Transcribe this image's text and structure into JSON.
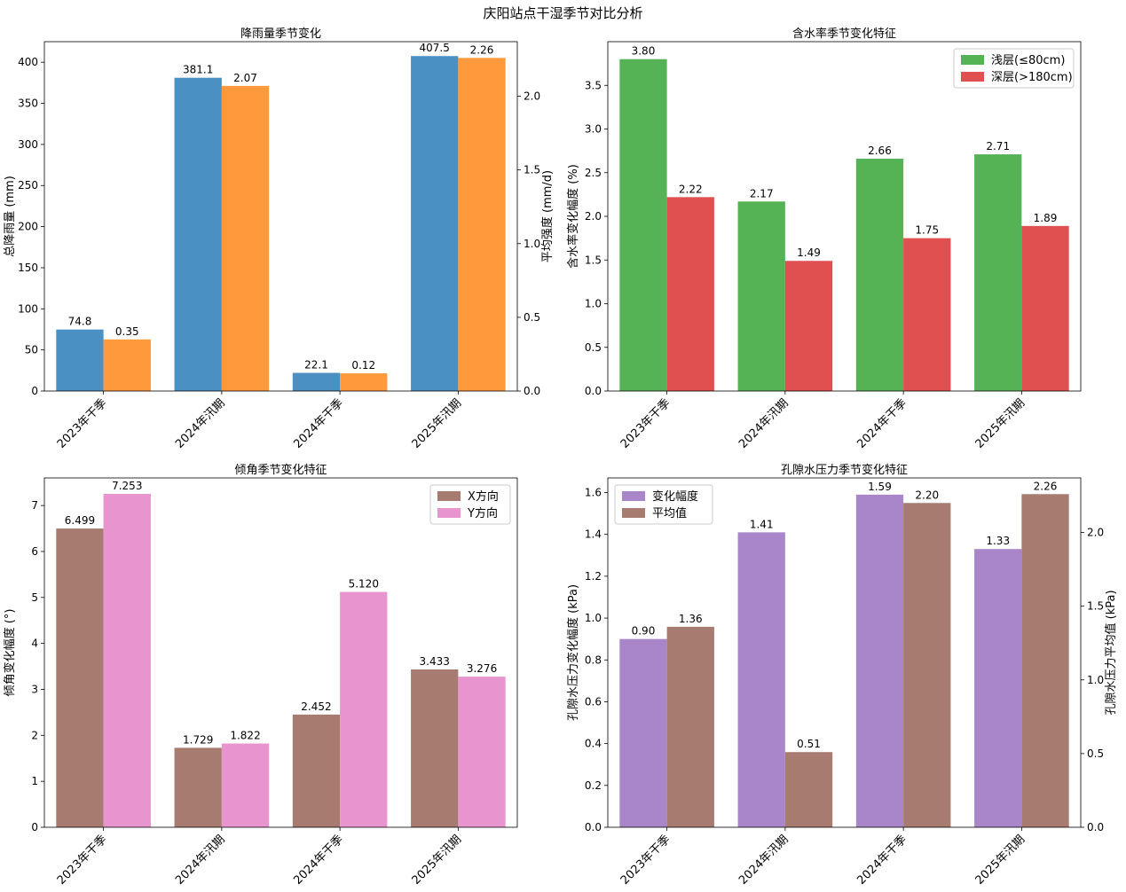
{
  "figure_title": "庆阳站点干湿季节对比分析",
  "colors": {
    "blue": "#4a90c2",
    "orange": "#ff9a3c",
    "green": "#55b255",
    "red": "#e05050",
    "brown": "#a77b6f",
    "pink": "#e895cf",
    "purple": "#a986c9"
  },
  "chart_data": [
    {
      "id": "rain",
      "type": "bar",
      "title": "降雨量季节变化",
      "categories": [
        "2023年干季",
        "2024年汛期",
        "2024年干季",
        "2025年汛期"
      ],
      "ylabel": "总降雨量 (mm)",
      "ylabel_right": "平均强度 (mm/d)",
      "ylim": [
        0,
        425
      ],
      "ylim_right": [
        0,
        2.37
      ],
      "yticks": [
        0,
        50,
        100,
        150,
        200,
        250,
        300,
        350,
        400
      ],
      "yticks_right": [
        0.0,
        0.5,
        1.0,
        1.5,
        2.0
      ],
      "yfmt": "int",
      "yfmt_right": "1",
      "series": [
        {
          "values": [
            74.8,
            381.1,
            22.1,
            407.5
          ],
          "labels": [
            "74.8",
            "381.1",
            "22.1",
            "407.5"
          ],
          "color": "#4a90c2",
          "axis": "left"
        },
        {
          "values": [
            0.35,
            2.07,
            0.12,
            2.26
          ],
          "labels": [
            "0.35",
            "2.07",
            "0.12",
            "2.26"
          ],
          "color": "#ff9a3c",
          "axis": "right"
        }
      ]
    },
    {
      "id": "moisture",
      "type": "bar",
      "title": "含水率季节变化特征",
      "categories": [
        "2023年干季",
        "2024年汛期",
        "2024年干季",
        "2025年汛期"
      ],
      "ylabel": "含水率变化幅度 (%)",
      "ylim": [
        0,
        4.0
      ],
      "yticks": [
        0.0,
        0.5,
        1.0,
        1.5,
        2.0,
        2.5,
        3.0,
        3.5
      ],
      "yfmt": "1",
      "legend": "upper right",
      "series": [
        {
          "name": "浅层(≤80cm)",
          "values": [
            3.8,
            2.17,
            2.66,
            2.71
          ],
          "labels": [
            "3.80",
            "2.17",
            "2.66",
            "2.71"
          ],
          "color": "#55b255",
          "axis": "left"
        },
        {
          "name": "深层(>180cm)",
          "values": [
            2.22,
            1.49,
            1.75,
            1.89
          ],
          "labels": [
            "2.22",
            "1.49",
            "1.75",
            "1.89"
          ],
          "color": "#e05050",
          "axis": "left"
        }
      ]
    },
    {
      "id": "tilt",
      "type": "bar",
      "title": "倾角季节变化特征",
      "categories": [
        "2023年干季",
        "2024年汛期",
        "2024年干季",
        "2025年汛期"
      ],
      "ylabel": "倾角变化幅度 (°)",
      "ylim": [
        0,
        7.6
      ],
      "yticks": [
        0,
        1,
        2,
        3,
        4,
        5,
        6,
        7
      ],
      "yfmt": "int",
      "legend": "upper right",
      "series": [
        {
          "name": "X方向",
          "values": [
            6.499,
            1.729,
            2.452,
            3.433
          ],
          "labels": [
            "6.499",
            "1.729",
            "2.452",
            "3.433"
          ],
          "color": "#a77b6f",
          "axis": "left"
        },
        {
          "name": "Y方向",
          "values": [
            7.253,
            1.822,
            5.12,
            3.276
          ],
          "labels": [
            "7.253",
            "1.822",
            "5.120",
            "3.276"
          ],
          "color": "#e895cf",
          "axis": "left"
        }
      ]
    },
    {
      "id": "pore",
      "type": "bar",
      "title": "孔隙水压力季节变化特征",
      "categories": [
        "2023年干季",
        "2024年汛期",
        "2024年干季",
        "2025年汛期"
      ],
      "ylabel": "孔隙水压力变化幅度 (kPa)",
      "ylabel_right": "孔隙水压力平均值 (kPa)",
      "ylim": [
        0,
        1.67
      ],
      "ylim_right": [
        0,
        2.37
      ],
      "yticks": [
        0.0,
        0.2,
        0.4,
        0.6,
        0.8,
        1.0,
        1.2,
        1.4,
        1.6
      ],
      "yticks_right": [
        0.0,
        0.5,
        1.0,
        1.5,
        2.0
      ],
      "yfmt": "1",
      "yfmt_right": "1",
      "legend": "upper left",
      "series": [
        {
          "name": "变化幅度",
          "values": [
            0.9,
            1.41,
            1.59,
            1.33
          ],
          "labels": [
            "0.90",
            "1.41",
            "1.59",
            "1.33"
          ],
          "color": "#a986c9",
          "axis": "left"
        },
        {
          "name": "平均值",
          "values": [
            1.36,
            0.51,
            2.2,
            2.26
          ],
          "labels": [
            "1.36",
            "0.51",
            "2.20",
            "2.26"
          ],
          "color": "#a77b6f",
          "axis": "right"
        }
      ]
    }
  ]
}
